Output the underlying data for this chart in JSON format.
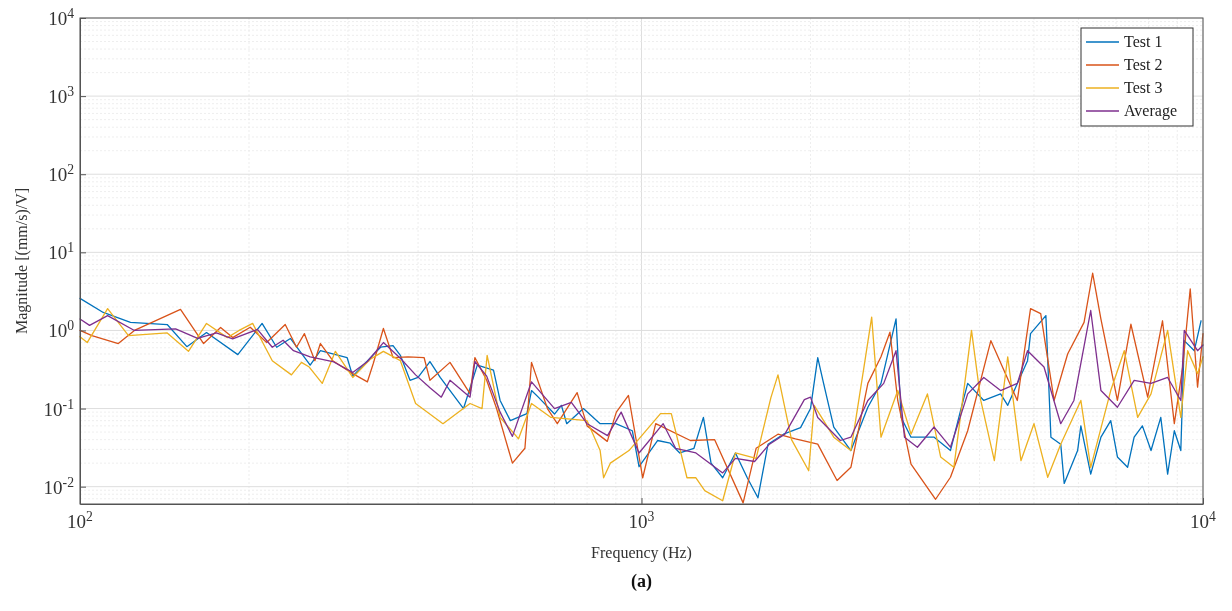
{
  "chart_data": {
    "type": "line",
    "xlabel": "Frequency (Hz)",
    "ylabel": "Magnitude [(mm/s)/V]",
    "annotations": [
      "(a)"
    ],
    "log": "xy",
    "grid": true,
    "legend": "top right",
    "xlim": [
      100,
      10000
    ],
    "ylim": [
      0.006,
      10000
    ],
    "xticks": [
      {
        "value": 100,
        "label": "10$^{2}$"
      },
      {
        "value": 1000,
        "label": "10$^{3}$"
      },
      {
        "value": 10000,
        "label": "10$^{4}$"
      }
    ],
    "yticks": [
      {
        "value": 0.01,
        "label": "10$^{-2}$"
      },
      {
        "value": 0.1,
        "label": "10$^{-1}$"
      },
      {
        "value": 1,
        "label": "10$^{0}$"
      },
      {
        "value": 10,
        "label": "10$^{1}$"
      },
      {
        "value": 100,
        "label": "10$^{2}$"
      },
      {
        "value": 1000,
        "label": "10$^{3}$"
      },
      {
        "value": 10000,
        "label": "10$^{4}$"
      }
    ],
    "series": [
      {
        "name": "Test 1",
        "color": "#0072bd",
        "x": [
          100,
          110,
          123,
          143,
          155,
          168,
          191,
          211,
          224,
          237,
          257,
          268,
          299,
          306,
          343,
          361,
          372,
          387,
          400,
          420,
          438,
          482,
          510,
          545,
          560,
          584,
          625,
          637,
          655,
          700,
          720,
          736,
          788,
          844,
          900,
          963,
          990,
          1068,
          1125,
          1170,
          1240,
          1289,
          1330,
          1395,
          1470,
          1543,
          1612,
          1680,
          1790,
          1920,
          2000,
          2060,
          2110,
          2200,
          2360,
          2530,
          2670,
          2840,
          2900,
          3020,
          3320,
          3550,
          3700,
          3810,
          4070,
          4360,
          4490,
          4670,
          4870,
          4930,
          5250,
          5360,
          5580,
          5660,
          5980,
          6060,
          6310,
          6580,
          6850,
          7040,
          7340,
          7540,
          7800,
          8080,
          8410,
          8650,
          8890,
          9130,
          9260,
          9650,
          9920
        ],
        "values": [
          2.57,
          1.7,
          1.27,
          1.19,
          0.62,
          0.94,
          0.49,
          1.23,
          0.61,
          0.79,
          0.36,
          0.55,
          0.45,
          0.26,
          0.61,
          0.64,
          0.48,
          0.23,
          0.25,
          0.4,
          0.25,
          0.1,
          0.36,
          0.31,
          0.127,
          0.07,
          0.086,
          0.17,
          0.14,
          0.085,
          0.11,
          0.064,
          0.1,
          0.064,
          0.064,
          0.052,
          0.018,
          0.039,
          0.036,
          0.027,
          0.031,
          0.077,
          0.02,
          0.013,
          0.027,
          0.013,
          0.0072,
          0.035,
          0.047,
          0.057,
          0.1,
          0.45,
          0.21,
          0.058,
          0.029,
          0.104,
          0.21,
          1.41,
          0.077,
          0.043,
          0.043,
          0.029,
          0.094,
          0.21,
          0.127,
          0.154,
          0.11,
          0.21,
          0.41,
          0.91,
          1.55,
          0.043,
          0.035,
          0.011,
          0.029,
          0.06,
          0.0145,
          0.043,
          0.07,
          0.024,
          0.0177,
          0.043,
          0.06,
          0.029,
          0.077,
          0.0145,
          0.052,
          0.029,
          0.74,
          0.55,
          1.33
        ]
      },
      {
        "name": "Test 2",
        "color": "#d95319",
        "x": [
          100,
          105,
          117,
          125,
          151,
          166,
          178,
          187,
          201,
          215,
          232,
          243,
          251,
          262,
          268,
          282,
          306,
          325,
          333,
          347,
          361,
          384,
          410,
          420,
          456,
          495,
          505,
          530,
          552,
          589,
          620,
          637,
          680,
          708,
          768,
          800,
          869,
          902,
          948,
          1005,
          1060,
          1222,
          1350,
          1517,
          1600,
          1750,
          1880,
          2060,
          2230,
          2360,
          2530,
          2670,
          2770,
          2860,
          3020,
          3340,
          3550,
          3810,
          4190,
          4670,
          4930,
          5140,
          5430,
          5740,
          6140,
          6360,
          6580,
          7040,
          7440,
          7970,
          8470,
          8890,
          9200,
          9490,
          9780,
          10000
        ],
        "values": [
          1.0,
          0.86,
          0.68,
          1.0,
          1.86,
          0.68,
          1.09,
          0.81,
          1.1,
          0.7,
          1.19,
          0.61,
          0.91,
          0.41,
          0.68,
          0.41,
          0.28,
          0.22,
          0.38,
          1.06,
          0.45,
          0.46,
          0.45,
          0.23,
          0.39,
          0.155,
          0.45,
          0.23,
          0.1,
          0.02,
          0.031,
          0.39,
          0.1,
          0.064,
          0.16,
          0.06,
          0.038,
          0.09,
          0.147,
          0.013,
          0.064,
          0.039,
          0.04,
          0.0062,
          0.031,
          0.047,
          0.041,
          0.035,
          0.012,
          0.0177,
          0.21,
          0.46,
          0.95,
          0.127,
          0.0195,
          0.0069,
          0.0132,
          0.052,
          0.74,
          0.127,
          1.9,
          1.64,
          0.127,
          0.5,
          1.27,
          5.4,
          1.4,
          0.127,
          1.2,
          0.14,
          1.33,
          0.064,
          0.34,
          3.4,
          0.188,
          0.91
        ]
      },
      {
        "name": "Test 3",
        "color": "#edb120",
        "x": [
          100,
          103,
          112,
          122,
          143,
          156,
          168,
          183,
          192,
          203,
          220,
          238,
          248,
          256,
          270,
          285,
          306,
          329,
          347,
          372,
          396,
          443,
          495,
          520,
          531,
          560,
          604,
          637,
          690,
          800,
          844,
          856,
          880,
          950,
          1081,
          1130,
          1205,
          1250,
          1296,
          1395,
          1470,
          1600,
          1700,
          1750,
          1850,
          1985,
          2030,
          2200,
          2360,
          2490,
          2570,
          2670,
          2860,
          3020,
          3230,
          3410,
          3600,
          3750,
          3870,
          4020,
          4250,
          4490,
          4740,
          5000,
          5290,
          5580,
          6060,
          6310,
          6850,
          7240,
          7650,
          8080,
          8650,
          9130,
          9390,
          9780,
          10000
        ],
        "values": [
          0.83,
          0.7,
          1.9,
          0.86,
          0.93,
          0.54,
          1.23,
          0.81,
          1.0,
          1.23,
          0.41,
          0.27,
          0.39,
          0.34,
          0.21,
          0.54,
          0.25,
          0.43,
          0.54,
          0.41,
          0.116,
          0.064,
          0.116,
          0.1,
          0.48,
          0.077,
          0.041,
          0.116,
          0.077,
          0.07,
          0.029,
          0.013,
          0.02,
          0.029,
          0.086,
          0.086,
          0.013,
          0.013,
          0.0089,
          0.0066,
          0.027,
          0.023,
          0.138,
          0.27,
          0.04,
          0.016,
          0.11,
          0.043,
          0.029,
          0.34,
          1.48,
          0.043,
          0.17,
          0.047,
          0.154,
          0.024,
          0.0177,
          0.17,
          1.0,
          0.127,
          0.0215,
          0.46,
          0.0215,
          0.064,
          0.0132,
          0.035,
          0.127,
          0.0177,
          0.17,
          0.55,
          0.077,
          0.154,
          1.0,
          0.077,
          0.55,
          0.28,
          0.46
        ]
      },
      {
        "name": "Average",
        "color": "#7e2f8e",
        "x": [
          100,
          104,
          112,
          125,
          148,
          162,
          175,
          187,
          207,
          220,
          230,
          240,
          257,
          282,
          306,
          325,
          347,
          372,
          396,
          420,
          440,
          456,
          495,
          505,
          530,
          560,
          589,
          637,
          700,
          750,
          800,
          870,
          920,
          990,
          1093,
          1150,
          1250,
          1395,
          1470,
          1590,
          1690,
          1800,
          1950,
          2000,
          2060,
          2260,
          2360,
          2530,
          2700,
          2840,
          2940,
          3100,
          3320,
          3550,
          3810,
          4070,
          4360,
          4670,
          4870,
          5210,
          5580,
          5890,
          6310,
          6580,
          7040,
          7540,
          8080,
          8650,
          9130,
          9260,
          9780,
          10000
        ],
        "values": [
          1.4,
          1.16,
          1.55,
          1.0,
          1.05,
          0.79,
          0.93,
          0.78,
          1.03,
          0.61,
          0.75,
          0.55,
          0.46,
          0.4,
          0.29,
          0.4,
          0.7,
          0.44,
          0.27,
          0.185,
          0.14,
          0.23,
          0.14,
          0.4,
          0.26,
          0.09,
          0.044,
          0.22,
          0.1,
          0.12,
          0.064,
          0.045,
          0.09,
          0.027,
          0.064,
          0.031,
          0.027,
          0.015,
          0.023,
          0.021,
          0.035,
          0.047,
          0.13,
          0.14,
          0.077,
          0.039,
          0.043,
          0.127,
          0.21,
          0.55,
          0.043,
          0.032,
          0.058,
          0.032,
          0.154,
          0.25,
          0.17,
          0.21,
          0.55,
          0.34,
          0.064,
          0.127,
          1.8,
          0.17,
          0.104,
          0.23,
          0.21,
          0.25,
          0.127,
          1.0,
          0.55,
          0.65
        ]
      }
    ]
  }
}
